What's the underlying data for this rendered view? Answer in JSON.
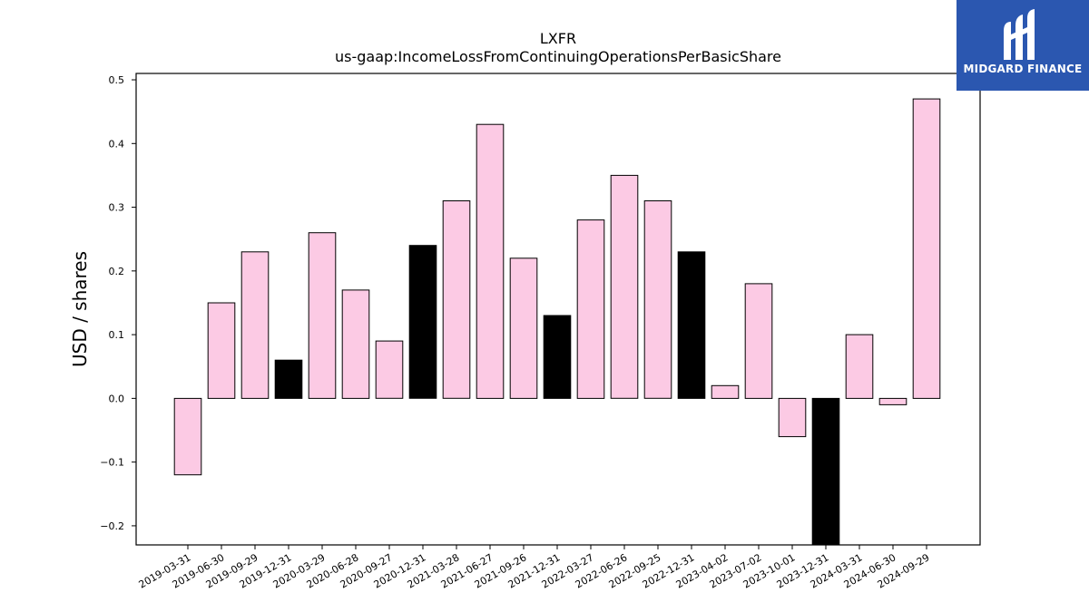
{
  "chart_data": {
    "type": "bar",
    "title": "LXFR",
    "subtitle": "us-gaap:IncomeLossFromContinuingOperationsPerBasicShare",
    "ylabel": "USD / shares",
    "xlabel": "",
    "ylim": [
      -0.23,
      0.51
    ],
    "yticks": [
      -0.2,
      -0.1,
      0.0,
      0.1,
      0.2,
      0.3,
      0.4,
      0.5
    ],
    "ytick_labels": [
      "−0.2",
      "−0.1",
      "0.0",
      "0.1",
      "0.2",
      "0.3",
      "0.4",
      "0.5"
    ],
    "categories": [
      "2019-03-31",
      "2019-06-30",
      "2019-09-29",
      "2019-12-31",
      "2020-03-29",
      "2020-06-28",
      "2020-09-27",
      "2020-12-31",
      "2021-03-28",
      "2021-06-27",
      "2021-09-26",
      "2021-12-31",
      "2022-03-27",
      "2022-06-26",
      "2022-09-25",
      "2022-12-31",
      "2023-04-02",
      "2023-07-02",
      "2023-10-01",
      "2023-12-31",
      "2024-03-31",
      "2024-06-30",
      "2024-09-29"
    ],
    "values": [
      -0.12,
      0.15,
      0.23,
      0.06,
      0.26,
      0.17,
      0.09,
      0.24,
      0.31,
      0.43,
      0.22,
      0.13,
      0.28,
      0.35,
      0.31,
      0.23,
      0.02,
      0.18,
      -0.06,
      -0.25,
      0.1,
      -0.01,
      0.47
    ],
    "highlighted": [
      false,
      false,
      false,
      true,
      false,
      false,
      false,
      true,
      false,
      false,
      false,
      true,
      false,
      false,
      false,
      true,
      false,
      false,
      false,
      true,
      false,
      false,
      false
    ],
    "colors": {
      "bar": "#fccae4",
      "highlight": "#000000",
      "edge": "#000000"
    },
    "grid": false,
    "legend": "none"
  },
  "logo": {
    "text": "MIDGARD FINANCE",
    "icon": "midgard-logo-icon",
    "color": "#2b57b0"
  }
}
